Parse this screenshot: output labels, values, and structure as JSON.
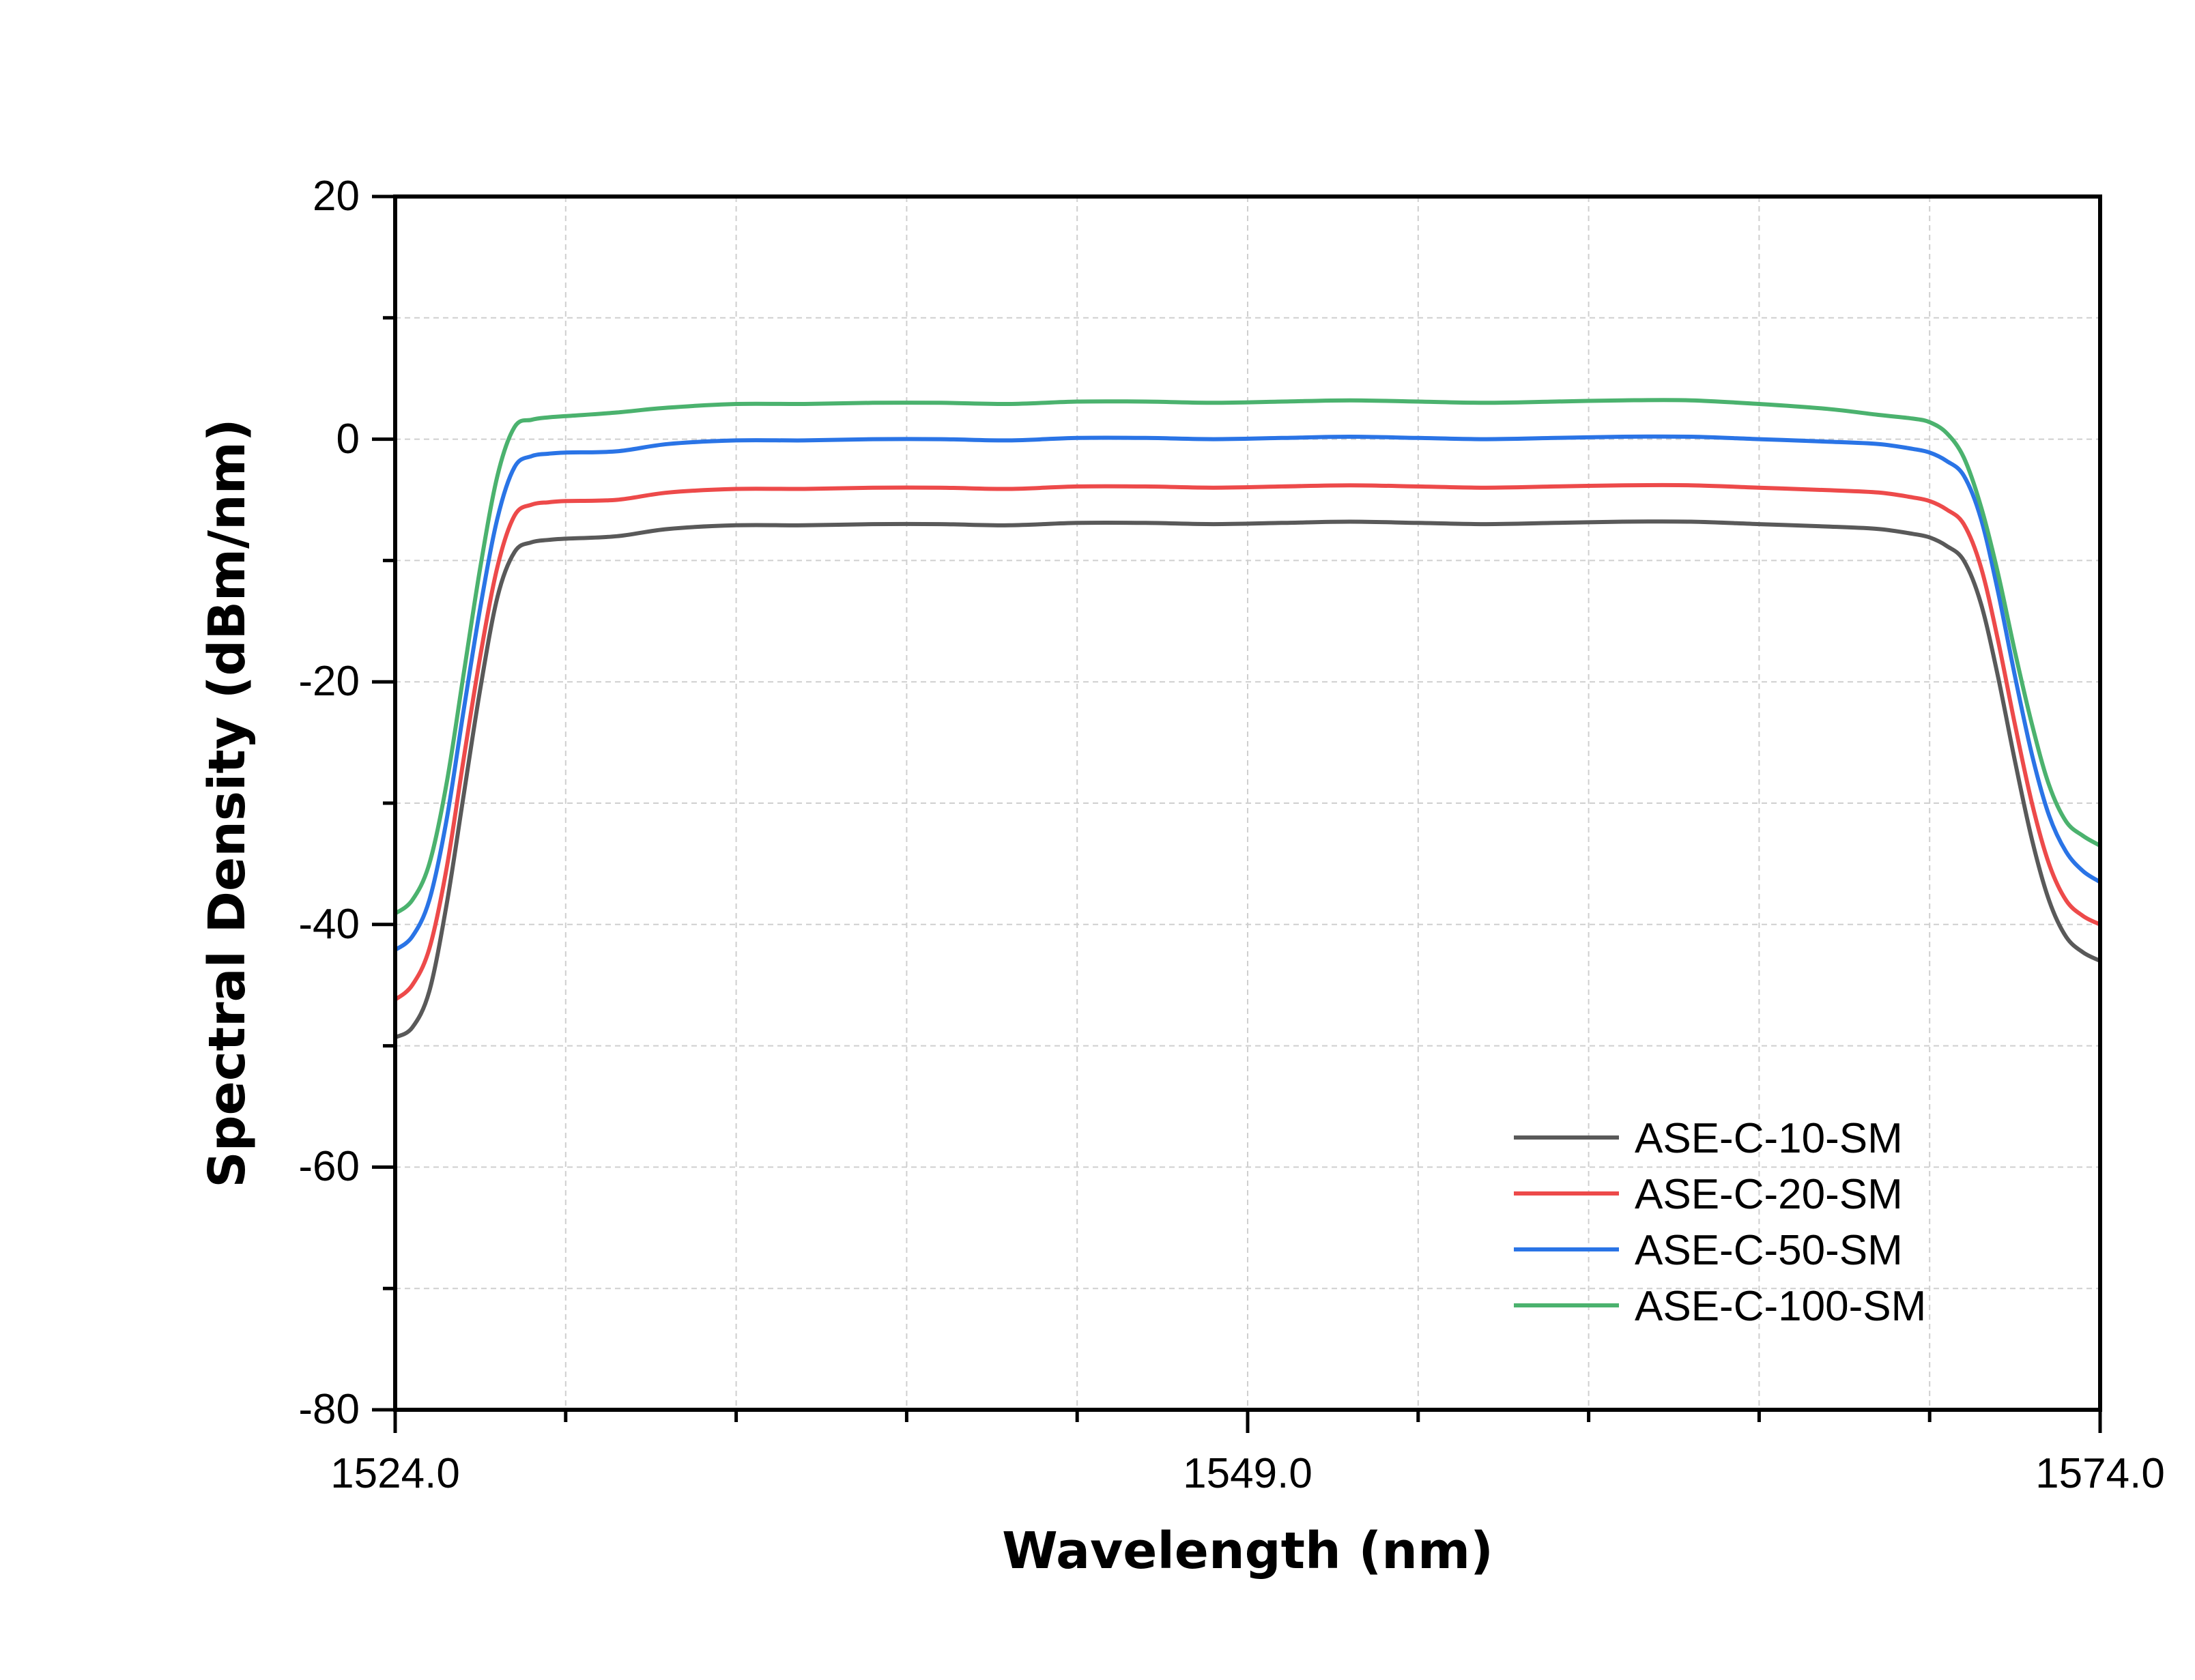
{
  "chart_data": {
    "type": "line",
    "title": "",
    "xlabel": "Wavelength (nm)",
    "ylabel": "Spectral Density (dBm/nm)",
    "xlim": [
      1524.0,
      1574.0
    ],
    "ylim": [
      -80,
      20
    ],
    "x_tick_labels": [
      "1524.0",
      "1549.0",
      "1574.0"
    ],
    "y_tick_labels": [
      "20",
      "0",
      "-20",
      "-40",
      "-60",
      "-80"
    ],
    "grid": true,
    "legend_position": "bottom-right",
    "series": [
      {
        "name": "ASE-C-10-SM",
        "color": "#595959",
        "x": [
          1524,
          1524.5,
          1525,
          1525.5,
          1526,
          1526.5,
          1527,
          1527.5,
          1528,
          1528.5,
          1529,
          1530.5,
          1532,
          1534,
          1536,
          1538,
          1540,
          1542,
          1544,
          1546,
          1548,
          1550,
          1552,
          1554,
          1556,
          1558,
          1560,
          1562,
          1564,
          1566,
          1567.5,
          1568.5,
          1569,
          1569.5,
          1570,
          1570.5,
          1571,
          1571.5,
          1572,
          1572.5,
          1573,
          1573.5,
          1574
        ],
        "y": [
          -49.3,
          -48.5,
          -45.5,
          -38.5,
          -29.5,
          -20.5,
          -13.0,
          -9.3,
          -8.5,
          -8.3,
          -8.2,
          -8.0,
          -7.4,
          -7.1,
          -7.1,
          -7.0,
          -7.0,
          -7.1,
          -6.9,
          -6.9,
          -7.0,
          -6.9,
          -6.8,
          -6.9,
          -7.0,
          -6.9,
          -6.8,
          -6.8,
          -7.0,
          -7.2,
          -7.4,
          -7.8,
          -8.1,
          -8.8,
          -10.0,
          -13.5,
          -19.5,
          -26.5,
          -33.0,
          -38.0,
          -41.0,
          -42.3,
          -43.0
        ]
      },
      {
        "name": "ASE-C-20-SM",
        "color": "#ed4a4a",
        "x": [
          1524,
          1524.5,
          1525,
          1525.5,
          1526,
          1526.5,
          1527,
          1527.5,
          1528,
          1528.5,
          1529,
          1530.5,
          1532,
          1534,
          1536,
          1538,
          1540,
          1542,
          1544,
          1546,
          1548,
          1550,
          1552,
          1554,
          1556,
          1558,
          1560,
          1562,
          1564,
          1566,
          1567.5,
          1568.5,
          1569,
          1569.5,
          1570,
          1570.5,
          1571,
          1571.5,
          1572,
          1572.5,
          1573,
          1573.5,
          1574
        ],
        "y": [
          -46.2,
          -45.0,
          -42.0,
          -35.5,
          -26.5,
          -17.8,
          -10.5,
          -6.3,
          -5.4,
          -5.2,
          -5.1,
          -5.0,
          -4.4,
          -4.1,
          -4.1,
          -4.0,
          -4.0,
          -4.1,
          -3.9,
          -3.9,
          -4.0,
          -3.9,
          -3.8,
          -3.9,
          -4.0,
          -3.9,
          -3.8,
          -3.8,
          -4.0,
          -4.2,
          -4.4,
          -4.8,
          -5.1,
          -5.8,
          -7.0,
          -10.5,
          -16.5,
          -23.5,
          -30.0,
          -35.0,
          -38.0,
          -39.3,
          -40.0
        ]
      },
      {
        "name": "ASE-C-50-SM",
        "color": "#2a74e6",
        "x": [
          1524,
          1524.5,
          1525,
          1525.5,
          1526,
          1526.5,
          1527,
          1527.5,
          1528,
          1528.5,
          1529,
          1530.5,
          1532,
          1534,
          1536,
          1538,
          1540,
          1542,
          1544,
          1546,
          1548,
          1550,
          1552,
          1554,
          1556,
          1558,
          1560,
          1562,
          1564,
          1566,
          1567.5,
          1568.5,
          1569,
          1569.5,
          1570,
          1570.5,
          1571,
          1571.5,
          1572,
          1572.5,
          1573,
          1573.5,
          1574
        ],
        "y": [
          -42.1,
          -41.0,
          -38.0,
          -31.5,
          -22.5,
          -13.8,
          -6.5,
          -2.3,
          -1.4,
          -1.2,
          -1.1,
          -1.0,
          -0.4,
          -0.1,
          -0.1,
          0.0,
          0.0,
          -0.1,
          0.1,
          0.1,
          0.0,
          0.1,
          0.2,
          0.1,
          0.0,
          0.1,
          0.2,
          0.2,
          0.0,
          -0.2,
          -0.4,
          -0.8,
          -1.1,
          -1.8,
          -3.0,
          -6.5,
          -12.5,
          -19.5,
          -26.0,
          -31.0,
          -34.0,
          -35.6,
          -36.5
        ]
      },
      {
        "name": "ASE-C-100-SM",
        "color": "#4bb26e",
        "x": [
          1524,
          1524.5,
          1525,
          1525.5,
          1526,
          1526.5,
          1527,
          1527.5,
          1528,
          1528.5,
          1529,
          1530.5,
          1532,
          1534,
          1536,
          1538,
          1540,
          1542,
          1544,
          1546,
          1548,
          1550,
          1552,
          1554,
          1556,
          1558,
          1560,
          1562,
          1564,
          1566,
          1567.5,
          1568.5,
          1569,
          1569.5,
          1570,
          1570.5,
          1571,
          1571.5,
          1572,
          1572.5,
          1573,
          1573.5,
          1574
        ],
        "y": [
          -39.1,
          -38.0,
          -35.0,
          -28.5,
          -19.5,
          -10.5,
          -3.0,
          1.0,
          1.6,
          1.8,
          1.9,
          2.2,
          2.6,
          2.9,
          2.9,
          3.0,
          3.0,
          2.9,
          3.1,
          3.1,
          3.0,
          3.1,
          3.2,
          3.1,
          3.0,
          3.1,
          3.2,
          3.2,
          2.9,
          2.5,
          2.0,
          1.7,
          1.4,
          0.5,
          -1.5,
          -5.5,
          -11.0,
          -17.5,
          -23.5,
          -28.5,
          -31.5,
          -32.7,
          -33.5
        ]
      }
    ]
  }
}
